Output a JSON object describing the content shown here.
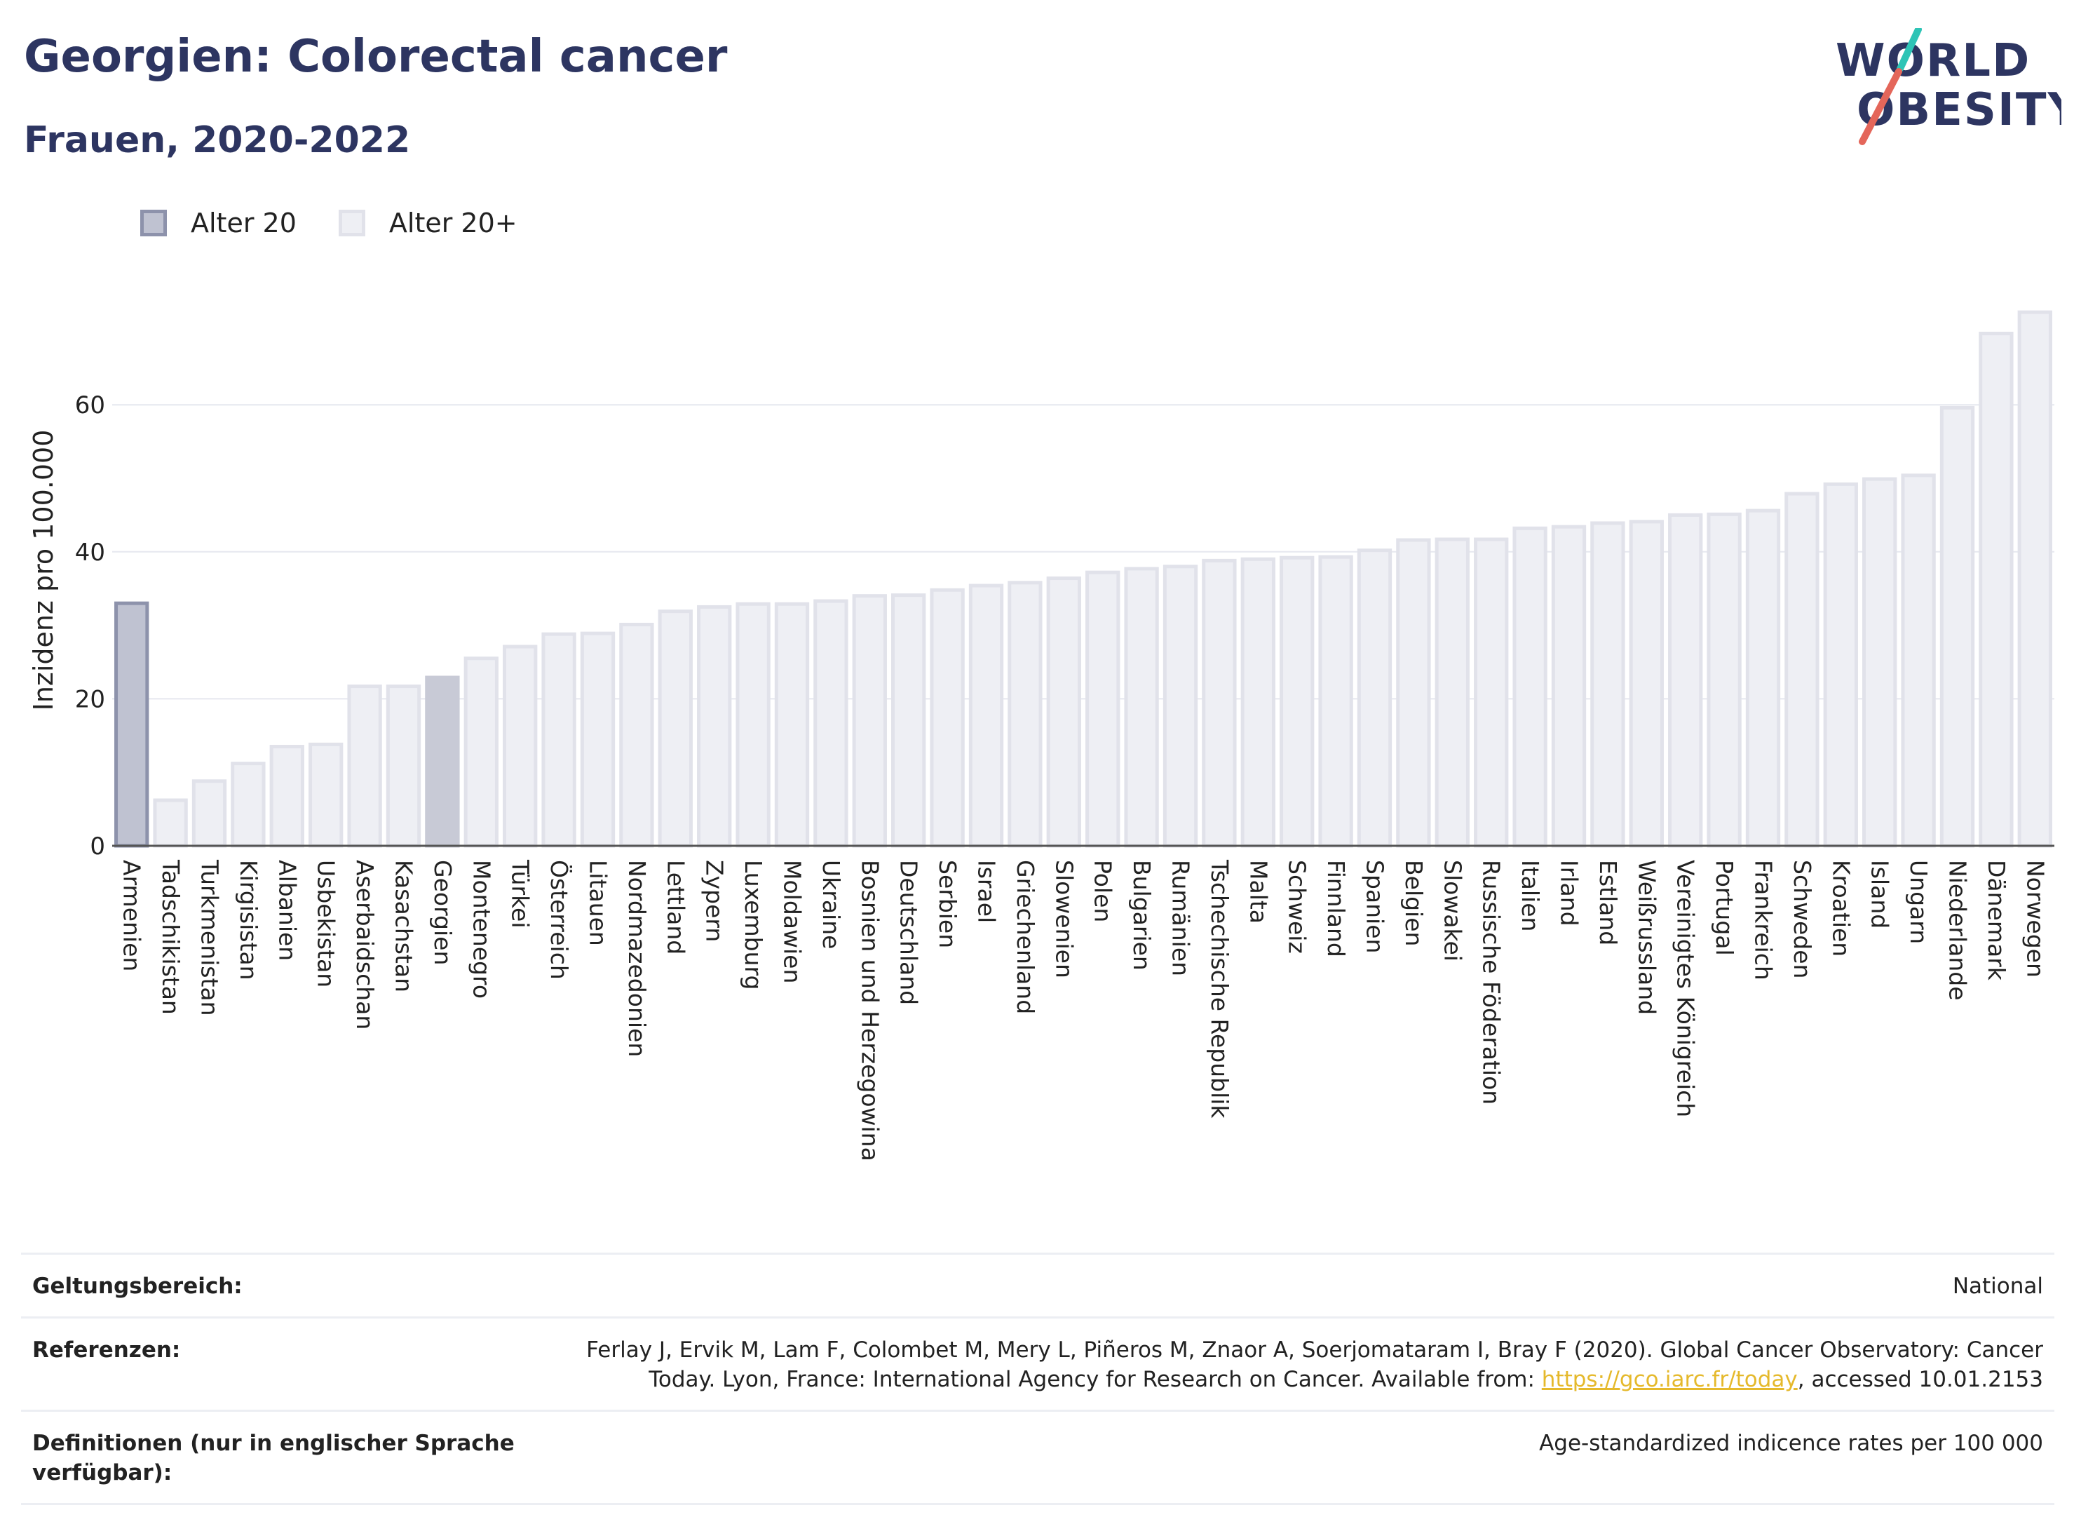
{
  "header": {
    "title": "Georgien: Colorectal cancer",
    "subtitle": "Frauen, 2020-2022",
    "logo_line1": "WORLD",
    "logo_line2": "OBESITY"
  },
  "legend": {
    "items": [
      {
        "label": "Alter 20"
      },
      {
        "label": "Alter 20+"
      }
    ]
  },
  "colors": {
    "title": "#2d3561",
    "bar_default_fill": "#eeeff4",
    "bar_default_stroke": "#e1e2ea",
    "bar_highlight_fill": "#c8cad6",
    "bar_alter20_fill": "#bfc2d1",
    "bar_alter20_stroke": "#8d92ab",
    "logo_accent_teal": "#2ec4b6",
    "logo_accent_red": "#e4665a"
  },
  "chart_data": {
    "type": "bar",
    "ylabel": "Inzidenz pro 100.000",
    "ylim": [
      0,
      75
    ],
    "yticks": [
      0,
      20,
      40,
      60
    ],
    "grid": true,
    "legend_position": "top-left",
    "highlight": "Georgien",
    "categories": [
      "Armenien",
      "Tadschikistan",
      "Turkmenistan",
      "Kirgisistan",
      "Albanien",
      "Usbekistan",
      "Aserbaidschan",
      "Kasachstan",
      "Georgien",
      "Montenegro",
      "Türkei",
      "Österreich",
      "Litauen",
      "Nordmazedonien",
      "Lettland",
      "Zypern",
      "Luxemburg",
      "Moldawien",
      "Ukraine",
      "Bosnien und Herzegowina",
      "Deutschland",
      "Serbien",
      "Israel",
      "Griechenland",
      "Slowenien",
      "Polen",
      "Bulgarien",
      "Rumänien",
      "Tschechische Republik",
      "Malta",
      "Schweiz",
      "Finnland",
      "Spanien",
      "Belgien",
      "Slowakei",
      "Russische Föderation",
      "Italien",
      "Irland",
      "Estland",
      "Weißrussland",
      "Vereinigtes Königreich",
      "Portugal",
      "Frankreich",
      "Schweden",
      "Kroatien",
      "Island",
      "Ungarn",
      "Niederlande",
      "Dänemark",
      "Norwegen"
    ],
    "series": [
      {
        "name": "Alter 20",
        "values": [
          33.0,
          null,
          null,
          null,
          null,
          null,
          null,
          null,
          null,
          null,
          null,
          null,
          null,
          null,
          null,
          null,
          null,
          null,
          null,
          null,
          null,
          null,
          null,
          null,
          null,
          null,
          null,
          null,
          null,
          null,
          null,
          null,
          null,
          null,
          null,
          null,
          null,
          null,
          null,
          null,
          null,
          null,
          null,
          null,
          null,
          null,
          null,
          null,
          null,
          null
        ]
      },
      {
        "name": "Alter 20+",
        "values": [
          null,
          6.2,
          8.8,
          11.2,
          13.5,
          13.8,
          21.7,
          21.7,
          22.9,
          25.5,
          27.1,
          28.8,
          28.9,
          30.1,
          31.9,
          32.5,
          32.9,
          32.9,
          33.3,
          34.0,
          34.1,
          34.8,
          35.4,
          35.8,
          36.4,
          37.2,
          37.7,
          38.0,
          38.8,
          39.0,
          39.2,
          39.3,
          40.2,
          41.6,
          41.7,
          41.7,
          43.2,
          43.4,
          43.9,
          44.1,
          45.0,
          45.1,
          45.6,
          47.9,
          49.2,
          49.9,
          50.4,
          59.6,
          69.7,
          72.6
        ]
      }
    ]
  },
  "footer": {
    "rows": [
      {
        "key": "Geltungsbereich:",
        "value": "National"
      },
      {
        "key": "Referenzen:",
        "value_pre": "Ferlay J, Ervik M, Lam F, Colombet M, Mery L, Piñeros M, Znaor A, Soerjomataram I, Bray F (2020). Global Cancer Observatory: Cancer Today. Lyon, France: International Agency for Research on Cancer. Available from: ",
        "link": "https://gco.iarc.fr/today",
        "value_post": ", accessed 10.01.2153"
      },
      {
        "key": "Definitionen (nur in englischer Sprache verfügbar):",
        "value": "Age-standardized indicence rates per 100 000"
      }
    ]
  }
}
